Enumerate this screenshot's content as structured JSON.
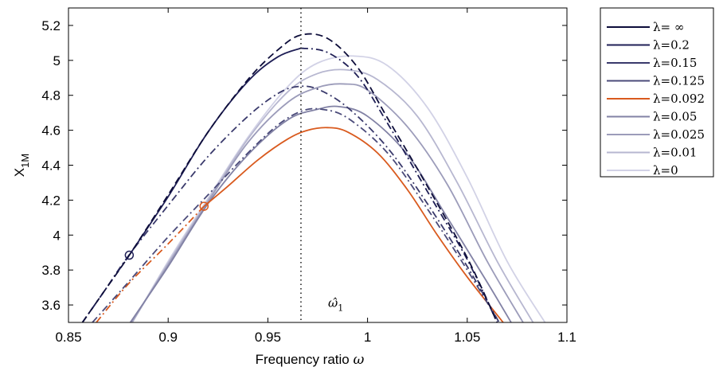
{
  "chart_data": {
    "type": "line",
    "title": "",
    "xlabel": "Frequency ratio",
    "xlabel_symbol": "ω",
    "ylabel": "X",
    "ylabel_sub": "1M",
    "xlim": [
      0.85,
      1.1
    ],
    "ylim": [
      3.5,
      5.3
    ],
    "xticks": [
      0.85,
      0.9,
      0.95,
      1.0,
      1.05,
      1.1
    ],
    "xtick_labels": [
      "0.85",
      "0.9",
      "0.95",
      "1",
      "1.05",
      "1.1"
    ],
    "yticks": [
      3.6,
      3.8,
      4.0,
      4.2,
      4.4,
      4.6,
      4.8,
      5.0,
      5.2
    ],
    "ytick_labels": [
      "3.6",
      "3.8",
      "4",
      "4.2",
      "4.4",
      "4.6",
      "4.8",
      "5",
      "5.2"
    ],
    "grid": false,
    "legend_position": "outside-right",
    "vline": {
      "x": 0.9666,
      "style": "dotted",
      "label": "ω̂",
      "label_sub": "1",
      "label_at_y": 3.58
    },
    "series": [
      {
        "name": "λ= ∞",
        "color": "#0d0d3a",
        "segments": [
          {
            "style": "dashed",
            "points": [
              [
                0.857,
                3.5
              ],
              [
                0.868,
                3.68
              ],
              [
                0.8805,
                3.885
              ],
              [
                0.9,
                4.23
              ],
              [
                0.92,
                4.59
              ],
              [
                0.94,
                4.89
              ],
              [
                0.955,
                5.06
              ],
              [
                0.9666,
                5.145
              ],
              [
                0.98,
                5.125
              ],
              [
                0.995,
                4.96
              ],
              [
                1.01,
                4.67
              ],
              [
                1.03,
                4.28
              ],
              [
                1.05,
                3.87
              ],
              [
                1.065,
                3.5
              ]
            ]
          }
        ]
      },
      {
        "name": "λ=0.2",
        "color": "#1f1f56",
        "segments": [
          {
            "style": "dashdot",
            "points": [
              [
                0.857,
                3.5
              ],
              [
                0.868,
                3.68
              ],
              [
                0.8805,
                3.885
              ]
            ]
          },
          {
            "style": "solid",
            "points": [
              [
                0.8805,
                3.885
              ],
              [
                0.9,
                4.22
              ],
              [
                0.92,
                4.59
              ],
              [
                0.94,
                4.88
              ],
              [
                0.955,
                5.02
              ],
              [
                0.9666,
                5.07
              ]
            ]
          },
          {
            "style": "dashdot",
            "points": [
              [
                0.9666,
                5.07
              ],
              [
                0.98,
                5.045
              ],
              [
                0.995,
                4.91
              ],
              [
                1.01,
                4.64
              ],
              [
                1.03,
                4.25
              ],
              [
                1.05,
                3.86
              ],
              [
                1.065,
                3.5
              ]
            ]
          }
        ]
      },
      {
        "name": "λ=0.15",
        "color": "#3a3a6c",
        "segments": [
          {
            "style": "dashdot",
            "points": [
              [
                0.857,
                3.5
              ],
              [
                0.868,
                3.68
              ],
              [
                0.88,
                3.88
              ],
              [
                0.9,
                4.17
              ],
              [
                0.92,
                4.45
              ],
              [
                0.94,
                4.68
              ],
              [
                0.955,
                4.81
              ],
              [
                0.965,
                4.85
              ],
              [
                0.975,
                4.835
              ],
              [
                0.99,
                4.73
              ],
              [
                1.01,
                4.5
              ],
              [
                1.03,
                4.18
              ],
              [
                1.05,
                3.82
              ],
              [
                1.066,
                3.5
              ]
            ]
          }
        ]
      },
      {
        "name": "λ=0.125",
        "color": "#4b4b7a",
        "segments": [
          {
            "style": "dashdot",
            "points": [
              [
                0.862,
                3.5
              ],
              [
                0.88,
                3.73
              ],
              [
                0.9,
                3.99
              ],
              [
                0.92,
                4.23
              ],
              [
                0.94,
                4.47
              ],
              [
                0.955,
                4.63
              ],
              [
                0.967,
                4.71
              ],
              [
                0.977,
                4.72
              ],
              [
                0.99,
                4.67
              ],
              [
                1.01,
                4.47
              ],
              [
                1.03,
                4.15
              ],
              [
                1.05,
                3.8
              ],
              [
                1.066,
                3.5
              ]
            ]
          }
        ]
      },
      {
        "name": "λ=0.092",
        "color": "#d95a1e",
        "segments": [
          {
            "style": "dashdot",
            "points": [
              [
                0.864,
                3.5
              ],
              [
                0.88,
                3.72
              ],
              [
                0.9,
                3.95
              ],
              [
                0.918,
                4.165
              ]
            ]
          },
          {
            "style": "solid",
            "points": [
              [
                0.918,
                4.165
              ],
              [
                0.93,
                4.28
              ],
              [
                0.945,
                4.43
              ],
              [
                0.96,
                4.55
              ],
              [
                0.97,
                4.6
              ],
              [
                0.98,
                4.615
              ],
              [
                0.99,
                4.59
              ],
              [
                1.005,
                4.47
              ],
              [
                1.02,
                4.26
              ],
              [
                1.035,
                4.0
              ],
              [
                1.05,
                3.76
              ],
              [
                1.068,
                3.5
              ]
            ]
          }
        ]
      },
      {
        "name": "λ=0.05",
        "color": "#8282a5",
        "segments": [
          {
            "style": "solid",
            "points": [
              [
                0.881,
                3.5
              ],
              [
                0.9,
                3.82
              ],
              [
                0.92,
                4.18
              ],
              [
                0.94,
                4.46
              ],
              [
                0.96,
                4.66
              ],
              [
                0.975,
                4.72
              ],
              [
                0.986,
                4.735
              ],
              [
                1.0,
                4.68
              ],
              [
                1.02,
                4.46
              ],
              [
                1.04,
                4.1
              ],
              [
                1.06,
                3.73
              ],
              [
                1.072,
                3.5
              ]
            ]
          }
        ]
      },
      {
        "name": "λ=0.025",
        "color": "#9c9cba",
        "segments": [
          {
            "style": "solid",
            "points": [
              [
                0.8815,
                3.5
              ],
              [
                0.9,
                3.83
              ],
              [
                0.92,
                4.19
              ],
              [
                0.94,
                4.53
              ],
              [
                0.96,
                4.76
              ],
              [
                0.975,
                4.845
              ],
              [
                0.988,
                4.865
              ],
              [
                1.0,
                4.83
              ],
              [
                1.02,
                4.62
              ],
              [
                1.04,
                4.29
              ],
              [
                1.06,
                3.85
              ],
              [
                1.078,
                3.5
              ]
            ]
          }
        ]
      },
      {
        "name": "λ=0.01",
        "color": "#b7b7d0",
        "segments": [
          {
            "style": "solid",
            "points": [
              [
                0.882,
                3.5
              ],
              [
                0.9,
                3.84
              ],
              [
                0.92,
                4.2
              ],
              [
                0.94,
                4.55
              ],
              [
                0.96,
                4.82
              ],
              [
                0.975,
                4.925
              ],
              [
                0.99,
                4.945
              ],
              [
                1.005,
                4.89
              ],
              [
                1.025,
                4.68
              ],
              [
                1.045,
                4.3
              ],
              [
                1.065,
                3.85
              ],
              [
                1.083,
                3.5
              ]
            ]
          }
        ]
      },
      {
        "name": "λ=0",
        "color": "#d2d2e6",
        "segments": [
          {
            "style": "solid",
            "points": [
              [
                0.882,
                3.5
              ],
              [
                0.9,
                3.85
              ],
              [
                0.92,
                4.21
              ],
              [
                0.94,
                4.56
              ],
              [
                0.96,
                4.85
              ],
              [
                0.975,
                4.985
              ],
              [
                0.993,
                5.025
              ],
              [
                1.01,
                4.97
              ],
              [
                1.03,
                4.73
              ],
              [
                1.05,
                4.33
              ],
              [
                1.07,
                3.85
              ],
              [
                1.089,
                3.5
              ]
            ]
          }
        ]
      }
    ],
    "markers": [
      {
        "x": 0.8805,
        "y": 3.885,
        "color": "#1f1f56",
        "shape": "circle-open"
      },
      {
        "x": 0.918,
        "y": 4.165,
        "color": "#d95a1e",
        "shape": "circle-open"
      }
    ]
  }
}
